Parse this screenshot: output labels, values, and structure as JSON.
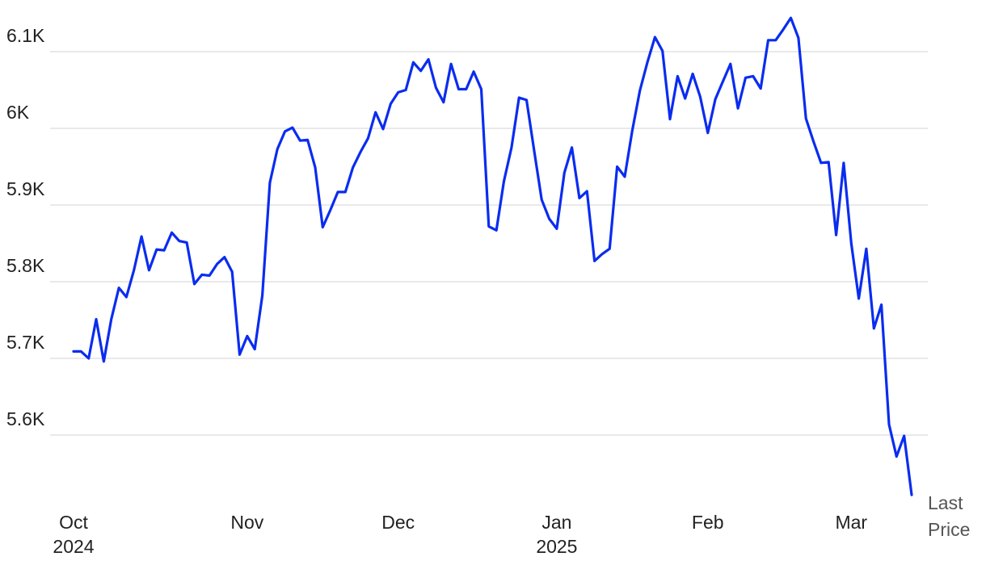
{
  "chart_data": {
    "type": "line",
    "categories": [
      "Oct\n2024",
      null,
      null,
      null,
      null,
      null,
      null,
      null,
      null,
      null,
      null,
      null,
      null,
      null,
      null,
      null,
      null,
      null,
      null,
      null,
      null,
      null,
      null,
      "Nov",
      null,
      null,
      null,
      null,
      null,
      null,
      null,
      null,
      null,
      null,
      null,
      null,
      null,
      null,
      null,
      null,
      null,
      null,
      null,
      "Dec",
      null,
      null,
      null,
      null,
      null,
      null,
      null,
      null,
      null,
      null,
      null,
      null,
      null,
      null,
      null,
      null,
      null,
      null,
      null,
      null,
      "Jan\n2025",
      null,
      null,
      null,
      null,
      null,
      null,
      null,
      null,
      null,
      null,
      null,
      null,
      null,
      null,
      null,
      null,
      null,
      null,
      null,
      "Feb",
      null,
      null,
      null,
      null,
      null,
      null,
      null,
      null,
      null,
      null,
      null,
      null,
      null,
      null,
      null,
      null,
      null,
      null,
      "Mar",
      null,
      null,
      null,
      null,
      null,
      null,
      null,
      null
    ],
    "series": [
      {
        "color": "#0a2cf0",
        "values": [
          5709,
          5709,
          5700,
          5751,
          5696,
          5751,
          5792,
          5780,
          5815,
          5859,
          5815,
          5842,
          5841,
          5864,
          5853,
          5851,
          5797,
          5809,
          5808,
          5823,
          5832,
          5813,
          5705,
          5729,
          5712,
          5782,
          5929,
          5973,
          5996,
          6001,
          5984,
          5985,
          5949,
          5871,
          5893,
          5917,
          5917,
          5949,
          5969,
          5987,
          6021,
          5999,
          6032,
          6047,
          6050,
          6086,
          6075,
          6090,
          6053,
          6034,
          6084,
          6051,
          6051,
          6074,
          6051,
          5872,
          5867,
          5931,
          5975,
          6040,
          6037,
          5971,
          5907,
          5882,
          5869,
          5942,
          5975,
          5909,
          5918,
          5827,
          5836,
          5843,
          5950,
          5937,
          5997,
          6049,
          6086,
          6119,
          6101,
          6012,
          6068,
          6039,
          6071,
          6041,
          5994,
          6038,
          6061,
          6084,
          6026,
          6066,
          6068,
          6052,
          6115,
          6115,
          6129,
          6144,
          6118,
          6013,
          5983,
          5955,
          5956,
          5861,
          5955,
          5850,
          5778,
          5843,
          5739,
          5770,
          5614,
          5572,
          5599,
          5522
        ]
      }
    ],
    "ylim": [
      5500,
      6150
    ],
    "yticks": [
      {
        "value": 5600,
        "label": "5.6K"
      },
      {
        "value": 5700,
        "label": "5.7K"
      },
      {
        "value": 5800,
        "label": "5.8K"
      },
      {
        "value": 5900,
        "label": "5.9K"
      },
      {
        "value": 6000,
        "label": "6K"
      },
      {
        "value": 6100,
        "label": "6.1K"
      }
    ],
    "grid": true,
    "annotation": "Last Price"
  }
}
